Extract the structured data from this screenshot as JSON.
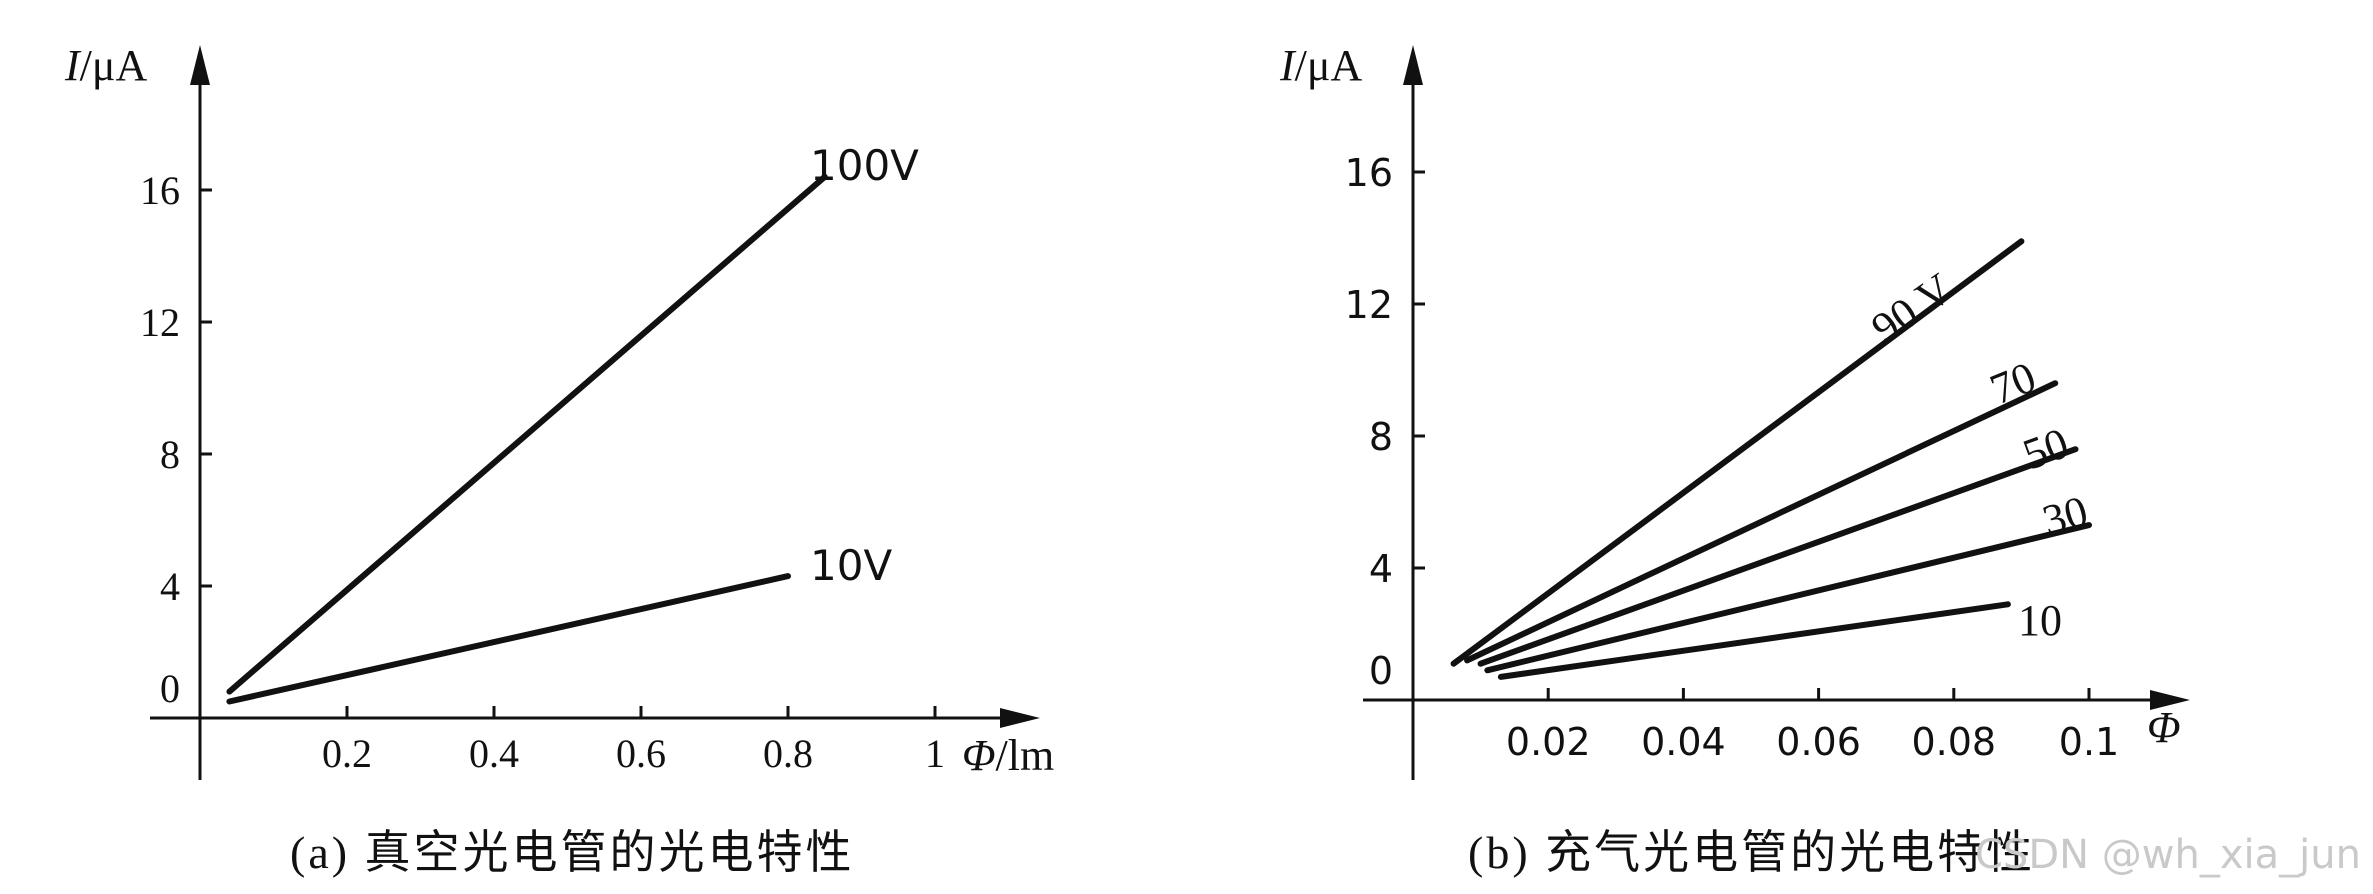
{
  "chart_data": [
    {
      "type": "line",
      "caption": "(a) 真空光电管的光电特性",
      "ylabel": "I/μA",
      "xlabel": "Φ/lm",
      "xlim": [
        0,
        1.2
      ],
      "ylim": [
        0,
        19
      ],
      "xticks": [
        0.2,
        0.4,
        0.6,
        0.8,
        1
      ],
      "xtick_labels": [
        "0.2",
        "0.4",
        "0.6",
        "0.8",
        "1"
      ],
      "yticks": [
        0,
        4,
        8,
        12,
        16
      ],
      "ytick_labels": [
        "0",
        "4",
        "8",
        "12",
        "16"
      ],
      "series": [
        {
          "name": "100V",
          "x": [
            0.04,
            0.85
          ],
          "y": [
            0.8,
            16.4
          ]
        },
        {
          "name": "10V",
          "x": [
            0.04,
            0.8
          ],
          "y": [
            0.5,
            4.3
          ]
        }
      ]
    },
    {
      "type": "line",
      "caption": "(b) 充气光电管的光电特性",
      "ylabel": "I/μA",
      "xlabel": "Φ",
      "xlim": [
        0,
        0.12
      ],
      "ylim": [
        0,
        19
      ],
      "xticks": [
        0.02,
        0.04,
        0.06,
        0.08,
        0.1
      ],
      "xtick_labels": [
        "0.02",
        "0.04",
        "0.06",
        "0.08",
        "0.1"
      ],
      "yticks": [
        0,
        4,
        8,
        12,
        16
      ],
      "ytick_labels": [
        "0",
        "4",
        "8",
        "12",
        "16"
      ],
      "series": [
        {
          "name": "90 V",
          "x": [
            0.006,
            0.09
          ],
          "y": [
            1.1,
            13.9
          ]
        },
        {
          "name": "70",
          "x": [
            0.008,
            0.095
          ],
          "y": [
            1.2,
            9.6
          ]
        },
        {
          "name": "50",
          "x": [
            0.01,
            0.098
          ],
          "y": [
            1.1,
            7.6
          ]
        },
        {
          "name": "30",
          "x": [
            0.011,
            0.1
          ],
          "y": [
            0.9,
            5.3
          ]
        },
        {
          "name": "10",
          "x": [
            0.013,
            0.088
          ],
          "y": [
            0.7,
            2.9
          ]
        }
      ]
    }
  ],
  "watermark": "CSDN @wh_xia_jun"
}
